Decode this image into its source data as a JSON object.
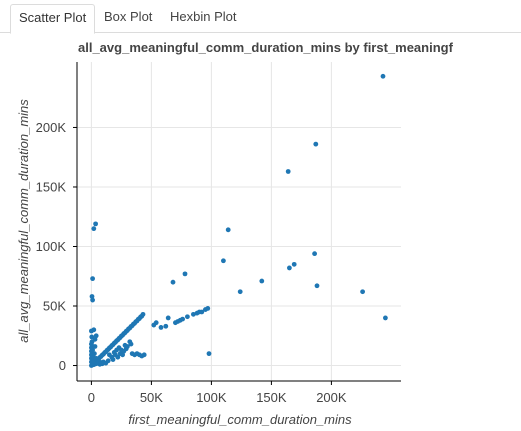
{
  "tabs": [
    {
      "label": "Scatter Plot",
      "active": true
    },
    {
      "label": "Box Plot",
      "active": false
    },
    {
      "label": "Hexbin Plot",
      "active": false
    }
  ],
  "colors": {
    "point": "#1f77b4",
    "axis": "#000000",
    "grid": "#e6e6e6",
    "text": "#444444"
  },
  "chart_data": {
    "type": "scatter",
    "title": "all_avg_meaningful_comm_duration_mins by first_meaningf",
    "xlabel": "first_meaningful_comm_duration_mins",
    "ylabel": "all_avg_meaningful_comm_duration_mins",
    "xlim": [
      -12000,
      258000
    ],
    "ylim": [
      -13000,
      255000
    ],
    "xticks": [
      0,
      50000,
      100000,
      150000,
      200000
    ],
    "xtick_labels": [
      "0",
      "50K",
      "100K",
      "150K",
      "200K"
    ],
    "yticks": [
      0,
      50000,
      100000,
      150000,
      200000
    ],
    "ytick_labels": [
      "0",
      "50K",
      "100K",
      "150K",
      "200K"
    ],
    "grid": true,
    "legend": false,
    "series": [
      {
        "points": [
          [
            0,
            0
          ],
          [
            800,
            500
          ],
          [
            1500,
            1200
          ],
          [
            2200,
            800
          ],
          [
            3000,
            2500
          ],
          [
            3500,
            3000
          ],
          [
            4000,
            1500
          ],
          [
            5000,
            4800
          ],
          [
            6000,
            5500
          ],
          [
            7000,
            6800
          ],
          [
            8000,
            7600
          ],
          [
            9000,
            8800
          ],
          [
            10000,
            9500
          ],
          [
            11000,
            10800
          ],
          [
            12000,
            11500
          ],
          [
            13000,
            12800
          ],
          [
            14000,
            13500
          ],
          [
            15000,
            14800
          ],
          [
            16000,
            15500
          ],
          [
            17000,
            16800
          ],
          [
            18000,
            17500
          ],
          [
            19000,
            18800
          ],
          [
            20000,
            19500
          ],
          [
            21000,
            20800
          ],
          [
            22000,
            21500
          ],
          [
            23000,
            22800
          ],
          [
            24000,
            23500
          ],
          [
            25000,
            24800
          ],
          [
            26000,
            25500
          ],
          [
            27000,
            26800
          ],
          [
            28000,
            27500
          ],
          [
            29000,
            28800
          ],
          [
            30000,
            29500
          ],
          [
            31000,
            30800
          ],
          [
            32000,
            31500
          ],
          [
            33000,
            32800
          ],
          [
            34000,
            33500
          ],
          [
            35000,
            34800
          ],
          [
            36000,
            35500
          ],
          [
            37000,
            36800
          ],
          [
            38000,
            37500
          ],
          [
            39000,
            38800
          ],
          [
            40000,
            39500
          ],
          [
            41000,
            40800
          ],
          [
            42000,
            41500
          ],
          [
            43000,
            43000
          ],
          [
            0,
            3000
          ],
          [
            0,
            6000
          ],
          [
            0,
            9000
          ],
          [
            0,
            12000
          ],
          [
            0,
            15000
          ],
          [
            0,
            18000
          ],
          [
            500,
            20000
          ],
          [
            300,
            24000
          ],
          [
            0,
            29000
          ],
          [
            1000,
            2000
          ],
          [
            2000,
            4000
          ],
          [
            1500,
            7000
          ],
          [
            2500,
            10000
          ],
          [
            1000,
            13000
          ],
          [
            3000,
            16000
          ],
          [
            2000,
            3500
          ],
          [
            4000,
            6000
          ],
          [
            5000,
            2000
          ],
          [
            6000,
            3500
          ],
          [
            7000,
            1000
          ],
          [
            8000,
            2500
          ],
          [
            9000,
            1500
          ],
          [
            10000,
            3000
          ],
          [
            12000,
            2000
          ],
          [
            14000,
            4000
          ],
          [
            15000,
            9000
          ],
          [
            17000,
            7000
          ],
          [
            18000,
            5000
          ],
          [
            19000,
            11000
          ],
          [
            20000,
            9000
          ],
          [
            21000,
            13000
          ],
          [
            22000,
            7000
          ],
          [
            23000,
            15000
          ],
          [
            24000,
            10000
          ],
          [
            25000,
            13000
          ],
          [
            26000,
            9000
          ],
          [
            27000,
            12000
          ],
          [
            28000,
            17000
          ],
          [
            29000,
            14000
          ],
          [
            30000,
            16000
          ],
          [
            32000,
            20000
          ],
          [
            33000,
            18000
          ],
          [
            34000,
            10000
          ],
          [
            36000,
            9000
          ],
          [
            38000,
            10000
          ],
          [
            40000,
            9000
          ],
          [
            42000,
            8000
          ],
          [
            44000,
            9000
          ],
          [
            3000,
            22000
          ],
          [
            4000,
            25000
          ],
          [
            2000,
            30000
          ],
          [
            1000,
            55000
          ],
          [
            500,
            58000
          ],
          [
            1000,
            73000
          ],
          [
            2000,
            115000
          ],
          [
            3500,
            119000
          ],
          [
            52000,
            34000
          ],
          [
            54000,
            36000
          ],
          [
            58000,
            32000
          ],
          [
            62000,
            33000
          ],
          [
            64000,
            40000
          ],
          [
            68000,
            70000
          ],
          [
            70000,
            36000
          ],
          [
            72000,
            37000
          ],
          [
            74000,
            38000
          ],
          [
            76000,
            39000
          ],
          [
            78000,
            77000
          ],
          [
            80000,
            41000
          ],
          [
            85000,
            43000
          ],
          [
            88000,
            44000
          ],
          [
            90000,
            45000
          ],
          [
            92000,
            45000
          ],
          [
            95000,
            47000
          ],
          [
            97000,
            48000
          ],
          [
            98000,
            10000
          ],
          [
            110000,
            88000
          ],
          [
            114000,
            114000
          ],
          [
            124000,
            62000
          ],
          [
            142000,
            71000
          ],
          [
            164000,
            163000
          ],
          [
            165000,
            82000
          ],
          [
            169000,
            85000
          ],
          [
            186000,
            94000
          ],
          [
            187000,
            186000
          ],
          [
            188000,
            67000
          ],
          [
            226000,
            62000
          ],
          [
            243000,
            243000
          ],
          [
            245000,
            40000
          ]
        ]
      }
    ]
  }
}
